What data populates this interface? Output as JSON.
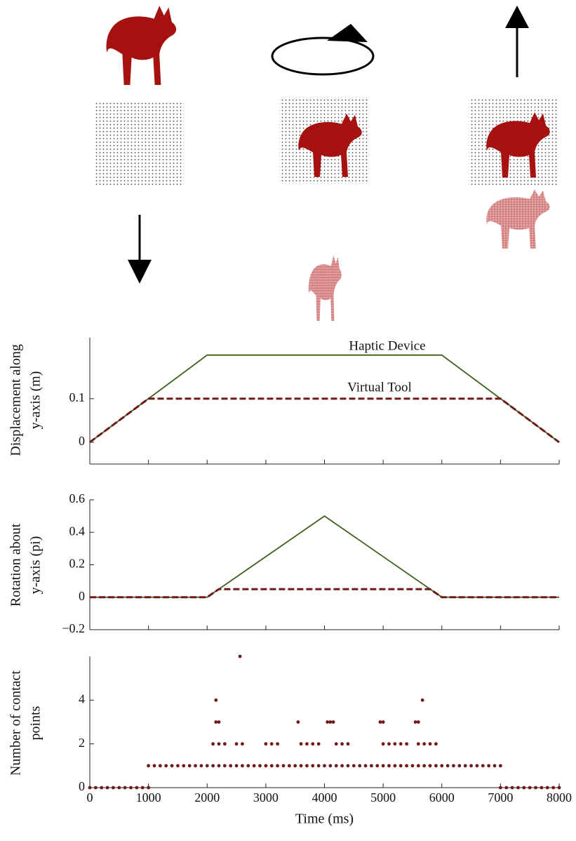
{
  "chart_data": [
    {
      "type": "line",
      "ylabel": [
        "Displacement along",
        "y-axis (m)"
      ],
      "annotations": [
        "Haptic Device",
        "Virtual Tool"
      ],
      "xlim": [
        0,
        8000
      ],
      "xticks": [
        0,
        1000,
        2000,
        3000,
        4000,
        5000,
        6000,
        7000,
        8000
      ],
      "ylim": [
        -0.05,
        0.24
      ],
      "yticks": [
        0,
        0.1
      ],
      "series": [
        {
          "name": "Haptic Device",
          "color": "#3f5f1f",
          "dash": false,
          "x": [
            0,
            1000,
            2000,
            6000,
            7000,
            8000
          ],
          "values": [
            0,
            0.1,
            0.2,
            0.2,
            0.1,
            0
          ]
        },
        {
          "name": "Virtual Tool",
          "color": "#6e1a1a",
          "dash": true,
          "x": [
            0,
            1000,
            7000,
            8000
          ],
          "values": [
            0,
            0.1,
            0.1,
            0
          ]
        }
      ]
    },
    {
      "type": "line",
      "ylabel": [
        "Rotation about",
        "y-axis (pi)"
      ],
      "xlim": [
        0,
        8000
      ],
      "xticks": [
        0,
        1000,
        2000,
        3000,
        4000,
        5000,
        6000,
        7000,
        8000
      ],
      "ylim": [
        -0.2,
        0.6
      ],
      "yticks": [
        {
          "value": -0.2,
          "label": "−0.2"
        },
        0,
        0.2,
        0.4,
        0.6
      ],
      "series": [
        {
          "color": "#3f5f1f",
          "dash": false,
          "x": [
            0,
            2000,
            4000,
            6000,
            8000
          ],
          "values": [
            0,
            0,
            0.5,
            0,
            0
          ]
        },
        {
          "color": "#6e1a1a",
          "dash": true,
          "x": [
            0,
            2000,
            2200,
            5800,
            6000,
            8000
          ],
          "values": [
            0,
            0,
            0.05,
            0.05,
            0,
            0
          ]
        }
      ]
    },
    {
      "type": "scatter",
      "ylabel": [
        "Number of contact",
        "points"
      ],
      "xlabel": "Time (ms)",
      "xlim": [
        0,
        8000
      ],
      "xticks": [
        0,
        1000,
        2000,
        3000,
        4000,
        5000,
        6000,
        7000,
        8000
      ],
      "ylim": [
        0,
        6
      ],
      "yticks": [
        0,
        2,
        4
      ],
      "series": [
        {
          "color": "#6e1a1a",
          "x": [
            0,
            100,
            200,
            300,
            400,
            500,
            600,
            700,
            800,
            900,
            1000,
            7000,
            7100,
            7200,
            7300,
            7400,
            7500,
            7600,
            7700,
            7800,
            7900,
            8000,
            1000,
            1100,
            1200,
            1300,
            1400,
            1500,
            1600,
            1700,
            1800,
            1900,
            2000,
            2100,
            2200,
            2300,
            2400,
            2500,
            2600,
            2700,
            2800,
            2900,
            3000,
            3100,
            3200,
            3300,
            3400,
            3500,
            3600,
            3700,
            3800,
            3900,
            4000,
            4100,
            4200,
            4300,
            4400,
            4500,
            4600,
            4700,
            4800,
            4900,
            5000,
            5100,
            5200,
            5300,
            5400,
            5500,
            5600,
            5700,
            5800,
            5900,
            6000,
            6100,
            6200,
            6300,
            6400,
            6500,
            6600,
            6700,
            6800,
            6900,
            7000,
            2100,
            2200,
            2300,
            2500,
            2600,
            3000,
            3100,
            3200,
            3600,
            3700,
            3800,
            3900,
            4200,
            4300,
            4400,
            5000,
            5100,
            5200,
            5300,
            5400,
            5600,
            5700,
            5800,
            5900,
            2150,
            2200,
            3550,
            4050,
            4100,
            4150,
            4950,
            5000,
            5550,
            5600,
            2150,
            5670,
            2560
          ],
          "values": [
            0,
            0,
            0,
            0,
            0,
            0,
            0,
            0,
            0,
            0,
            0,
            0,
            0,
            0,
            0,
            0,
            0,
            0,
            0,
            0,
            0,
            0,
            1,
            1,
            1,
            1,
            1,
            1,
            1,
            1,
            1,
            1,
            1,
            1,
            1,
            1,
            1,
            1,
            1,
            1,
            1,
            1,
            1,
            1,
            1,
            1,
            1,
            1,
            1,
            1,
            1,
            1,
            1,
            1,
            1,
            1,
            1,
            1,
            1,
            1,
            1,
            1,
            1,
            1,
            1,
            1,
            1,
            1,
            1,
            1,
            1,
            1,
            1,
            1,
            1,
            1,
            1,
            1,
            1,
            1,
            1,
            1,
            1,
            2,
            2,
            2,
            2,
            2,
            2,
            2,
            2,
            2,
            2,
            2,
            2,
            2,
            2,
            2,
            2,
            2,
            2,
            2,
            2,
            2,
            2,
            2,
            2,
            3,
            3,
            3,
            3,
            3,
            3,
            3,
            3,
            3,
            3,
            4,
            4,
            6
          ]
        }
      ]
    }
  ]
}
